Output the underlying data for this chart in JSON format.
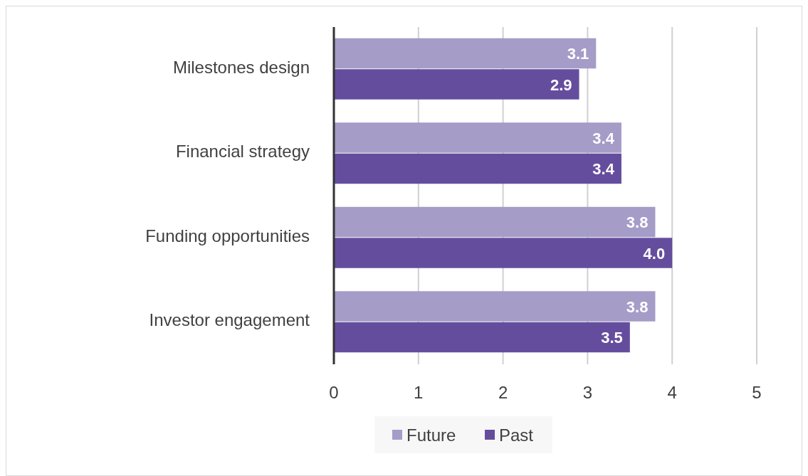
{
  "chart_data": {
    "type": "bar",
    "orientation": "horizontal",
    "categories": [
      "Milestones design",
      "Financial strategy",
      "Funding opportunities",
      "Investor engagement"
    ],
    "series": [
      {
        "name": "Future",
        "color": "#a59cc8",
        "values": [
          3.1,
          3.4,
          3.8,
          3.8
        ]
      },
      {
        "name": "Past",
        "color": "#654d9e",
        "values": [
          2.9,
          3.4,
          4.0,
          3.5
        ]
      }
    ],
    "value_labels": [
      [
        "3.1",
        "3.4",
        "3.8",
        "3.8"
      ],
      [
        "2.9",
        "3.4",
        "4.0",
        "3.5"
      ]
    ],
    "xlim": [
      0,
      5
    ],
    "xticks": [
      0,
      1,
      2,
      3,
      4,
      5
    ],
    "grid": "x",
    "legend": "bottom"
  }
}
